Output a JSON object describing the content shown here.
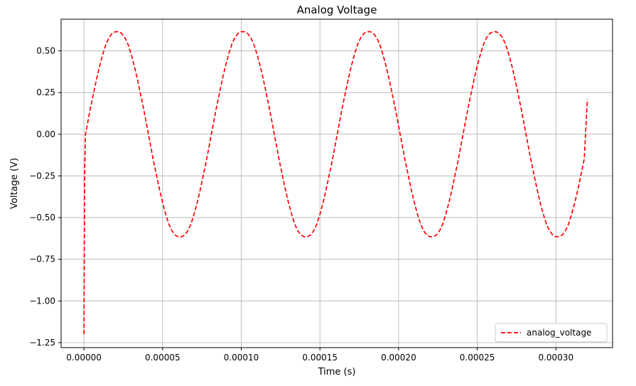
{
  "chart_data": {
    "type": "line",
    "title": "Analog Voltage",
    "xlabel": "Time (s)",
    "ylabel": "Voltage (V)",
    "xlim": [
      -1.45e-05,
      0.000336
    ],
    "ylim": [
      -1.28,
      0.69
    ],
    "x_ticks": [
      0,
      5e-05,
      0.0001,
      0.00015,
      0.0002,
      0.00025,
      0.0003
    ],
    "x_tick_labels": [
      "0.00000",
      "0.00005",
      "0.00010",
      "0.00015",
      "0.00020",
      "0.00025",
      "0.00030"
    ],
    "y_ticks": [
      -1.25,
      -1.0,
      -0.75,
      -0.5,
      -0.25,
      0.0,
      0.25,
      0.5
    ],
    "y_tick_labels": [
      "−1.25",
      "−1.00",
      "−0.75",
      "−0.50",
      "−0.25",
      "0.00",
      "0.25",
      "0.50"
    ],
    "grid": true,
    "legend_position": "bottom-right",
    "series": [
      {
        "name": "analog_voltage",
        "color": "#ff0000",
        "line_style": "dashed",
        "sampled_points": [
          [
            0.0,
            -1.2
          ],
          [
            5e-07,
            -0.2
          ],
          [
            1e-06,
            0.0
          ],
          [
            2e-06,
            0.05
          ],
          [
            4e-06,
            0.15
          ],
          [
            6e-06,
            0.24
          ],
          [
            8e-06,
            0.33
          ],
          [
            1e-05,
            0.41
          ],
          [
            1.2e-05,
            0.48
          ],
          [
            1.4e-05,
            0.54
          ],
          [
            1.6e-05,
            0.58
          ],
          [
            1.8e-05,
            0.605
          ],
          [
            2e-05,
            0.615
          ],
          [
            2.2e-05,
            0.615
          ],
          [
            2.4e-05,
            0.605
          ],
          [
            2.6e-05,
            0.58
          ],
          [
            2.8e-05,
            0.54
          ],
          [
            3e-05,
            0.48
          ],
          [
            3.2e-05,
            0.41
          ],
          [
            3.4e-05,
            0.33
          ],
          [
            3.6e-05,
            0.24
          ],
          [
            3.8e-05,
            0.15
          ],
          [
            4e-05,
            0.05
          ],
          [
            4.2e-05,
            -0.05
          ],
          [
            4.4e-05,
            -0.15
          ],
          [
            4.6e-05,
            -0.24
          ],
          [
            4.8e-05,
            -0.33
          ],
          [
            5e-05,
            -0.41
          ],
          [
            5.2e-05,
            -0.48
          ],
          [
            5.4e-05,
            -0.54
          ],
          [
            5.6e-05,
            -0.58
          ],
          [
            5.8e-05,
            -0.605
          ],
          [
            6e-05,
            -0.615
          ],
          [
            6.2e-05,
            -0.615
          ],
          [
            6.4e-05,
            -0.605
          ],
          [
            6.6e-05,
            -0.58
          ],
          [
            6.8e-05,
            -0.54
          ],
          [
            7e-05,
            -0.48
          ],
          [
            7.2e-05,
            -0.41
          ],
          [
            7.4e-05,
            -0.33
          ],
          [
            7.6e-05,
            -0.24
          ],
          [
            7.8e-05,
            -0.15
          ],
          [
            8e-05,
            -0.05
          ],
          [
            8.2e-05,
            0.05
          ],
          [
            8.4e-05,
            0.15
          ],
          [
            8.6e-05,
            0.24
          ],
          [
            8.8e-05,
            0.33
          ],
          [
            9e-05,
            0.41
          ],
          [
            9.2e-05,
            0.48
          ],
          [
            9.4e-05,
            0.54
          ],
          [
            9.6e-05,
            0.58
          ],
          [
            9.8e-05,
            0.605
          ],
          [
            0.0001,
            0.615
          ],
          [
            0.000102,
            0.615
          ],
          [
            0.000104,
            0.605
          ],
          [
            0.000106,
            0.58
          ],
          [
            0.000108,
            0.54
          ],
          [
            0.00011,
            0.48
          ],
          [
            0.000112,
            0.41
          ],
          [
            0.000114,
            0.33
          ],
          [
            0.000116,
            0.24
          ],
          [
            0.000118,
            0.15
          ],
          [
            0.00012,
            0.05
          ],
          [
            0.000122,
            -0.05
          ],
          [
            0.000124,
            -0.15
          ],
          [
            0.000126,
            -0.24
          ],
          [
            0.000128,
            -0.33
          ],
          [
            0.00013,
            -0.41
          ],
          [
            0.000132,
            -0.48
          ],
          [
            0.000134,
            -0.54
          ],
          [
            0.000136,
            -0.58
          ],
          [
            0.000138,
            -0.605
          ],
          [
            0.00014,
            -0.615
          ],
          [
            0.000142,
            -0.615
          ],
          [
            0.000144,
            -0.605
          ],
          [
            0.000146,
            -0.58
          ],
          [
            0.000148,
            -0.54
          ],
          [
            0.00015,
            -0.48
          ],
          [
            0.000152,
            -0.41
          ],
          [
            0.000154,
            -0.33
          ],
          [
            0.000156,
            -0.24
          ],
          [
            0.000158,
            -0.15
          ],
          [
            0.00016,
            -0.05
          ],
          [
            0.000162,
            0.05
          ],
          [
            0.000164,
            0.15
          ],
          [
            0.000166,
            0.24
          ],
          [
            0.000168,
            0.33
          ],
          [
            0.00017,
            0.41
          ],
          [
            0.000172,
            0.48
          ],
          [
            0.000174,
            0.54
          ],
          [
            0.000176,
            0.58
          ],
          [
            0.000178,
            0.605
          ],
          [
            0.00018,
            0.615
          ],
          [
            0.000182,
            0.615
          ],
          [
            0.000184,
            0.605
          ],
          [
            0.000186,
            0.58
          ],
          [
            0.000188,
            0.54
          ],
          [
            0.00019,
            0.48
          ],
          [
            0.000192,
            0.41
          ],
          [
            0.000194,
            0.33
          ],
          [
            0.000196,
            0.24
          ],
          [
            0.000198,
            0.15
          ],
          [
            0.0002,
            0.05
          ],
          [
            0.000202,
            -0.05
          ],
          [
            0.000204,
            -0.15
          ],
          [
            0.000206,
            -0.24
          ],
          [
            0.000208,
            -0.33
          ],
          [
            0.00021,
            -0.41
          ],
          [
            0.000212,
            -0.48
          ],
          [
            0.000214,
            -0.54
          ],
          [
            0.000216,
            -0.58
          ],
          [
            0.000218,
            -0.605
          ],
          [
            0.00022,
            -0.615
          ],
          [
            0.000222,
            -0.615
          ],
          [
            0.000224,
            -0.605
          ],
          [
            0.000226,
            -0.58
          ],
          [
            0.000228,
            -0.54
          ],
          [
            0.00023,
            -0.48
          ],
          [
            0.000232,
            -0.41
          ],
          [
            0.000234,
            -0.33
          ],
          [
            0.000236,
            -0.24
          ],
          [
            0.000238,
            -0.15
          ],
          [
            0.00024,
            -0.05
          ],
          [
            0.000242,
            0.05
          ],
          [
            0.000244,
            0.15
          ],
          [
            0.000246,
            0.24
          ],
          [
            0.000248,
            0.33
          ],
          [
            0.00025,
            0.41
          ],
          [
            0.000252,
            0.48
          ],
          [
            0.000254,
            0.54
          ],
          [
            0.000256,
            0.58
          ],
          [
            0.000258,
            0.605
          ],
          [
            0.00026,
            0.615
          ],
          [
            0.000262,
            0.615
          ],
          [
            0.000264,
            0.605
          ],
          [
            0.000266,
            0.58
          ],
          [
            0.000268,
            0.54
          ],
          [
            0.00027,
            0.48
          ],
          [
            0.000272,
            0.41
          ],
          [
            0.000274,
            0.33
          ],
          [
            0.000276,
            0.24
          ],
          [
            0.000278,
            0.15
          ],
          [
            0.00028,
            0.05
          ],
          [
            0.000282,
            -0.05
          ],
          [
            0.000284,
            -0.15
          ],
          [
            0.000286,
            -0.24
          ],
          [
            0.000288,
            -0.33
          ],
          [
            0.00029,
            -0.41
          ],
          [
            0.000292,
            -0.48
          ],
          [
            0.000294,
            -0.54
          ],
          [
            0.000296,
            -0.58
          ],
          [
            0.000298,
            -0.605
          ],
          [
            0.0003,
            -0.615
          ],
          [
            0.000302,
            -0.615
          ],
          [
            0.000304,
            -0.605
          ],
          [
            0.000306,
            -0.58
          ],
          [
            0.000308,
            -0.54
          ],
          [
            0.00031,
            -0.48
          ],
          [
            0.000312,
            -0.41
          ],
          [
            0.000314,
            -0.33
          ],
          [
            0.000316,
            -0.24
          ],
          [
            0.000318,
            -0.15
          ],
          [
            0.00032,
            0.21
          ]
        ]
      }
    ]
  }
}
